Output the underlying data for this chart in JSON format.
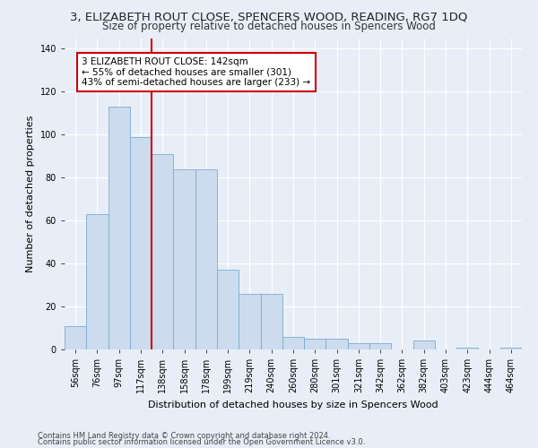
{
  "title": "3, ELIZABETH ROUT CLOSE, SPENCERS WOOD, READING, RG7 1DQ",
  "subtitle": "Size of property relative to detached houses in Spencers Wood",
  "xlabel": "Distribution of detached houses by size in Spencers Wood",
  "ylabel": "Number of detached properties",
  "footnote1": "Contains HM Land Registry data © Crown copyright and database right 2024.",
  "footnote2": "Contains public sector information licensed under the Open Government Licence v3.0.",
  "annotation_line1": "3 ELIZABETH ROUT CLOSE: 142sqm",
  "annotation_line2": "← 55% of detached houses are smaller (301)",
  "annotation_line3": "43% of semi-detached houses are larger (233) →",
  "bar_labels": [
    "56sqm",
    "76sqm",
    "97sqm",
    "117sqm",
    "138sqm",
    "158sqm",
    "178sqm",
    "199sqm",
    "219sqm",
    "240sqm",
    "260sqm",
    "280sqm",
    "301sqm",
    "321sqm",
    "342sqm",
    "362sqm",
    "382sqm",
    "403sqm",
    "423sqm",
    "444sqm",
    "464sqm"
  ],
  "bar_values": [
    11,
    63,
    113,
    99,
    91,
    84,
    84,
    37,
    26,
    26,
    6,
    5,
    5,
    3,
    3,
    0,
    4,
    0,
    1,
    0,
    1
  ],
  "bar_color": "#ccdcee",
  "bar_edge_color": "#7aabce",
  "vline_index": 4,
  "vline_color": "#cc0000",
  "annotation_box_color": "#ffffff",
  "annotation_box_edge": "#cc0000",
  "ylim": [
    0,
    145
  ],
  "yticks": [
    0,
    20,
    40,
    60,
    80,
    100,
    120,
    140
  ],
  "bg_color": "#e8eef7",
  "plot_bg_color": "#e8eef7",
  "grid_color": "#ffffff",
  "title_fontsize": 9.5,
  "subtitle_fontsize": 8.5,
  "axis_label_fontsize": 8,
  "tick_fontsize": 7,
  "annotation_fontsize": 7.5,
  "ylabel_fontsize": 8
}
